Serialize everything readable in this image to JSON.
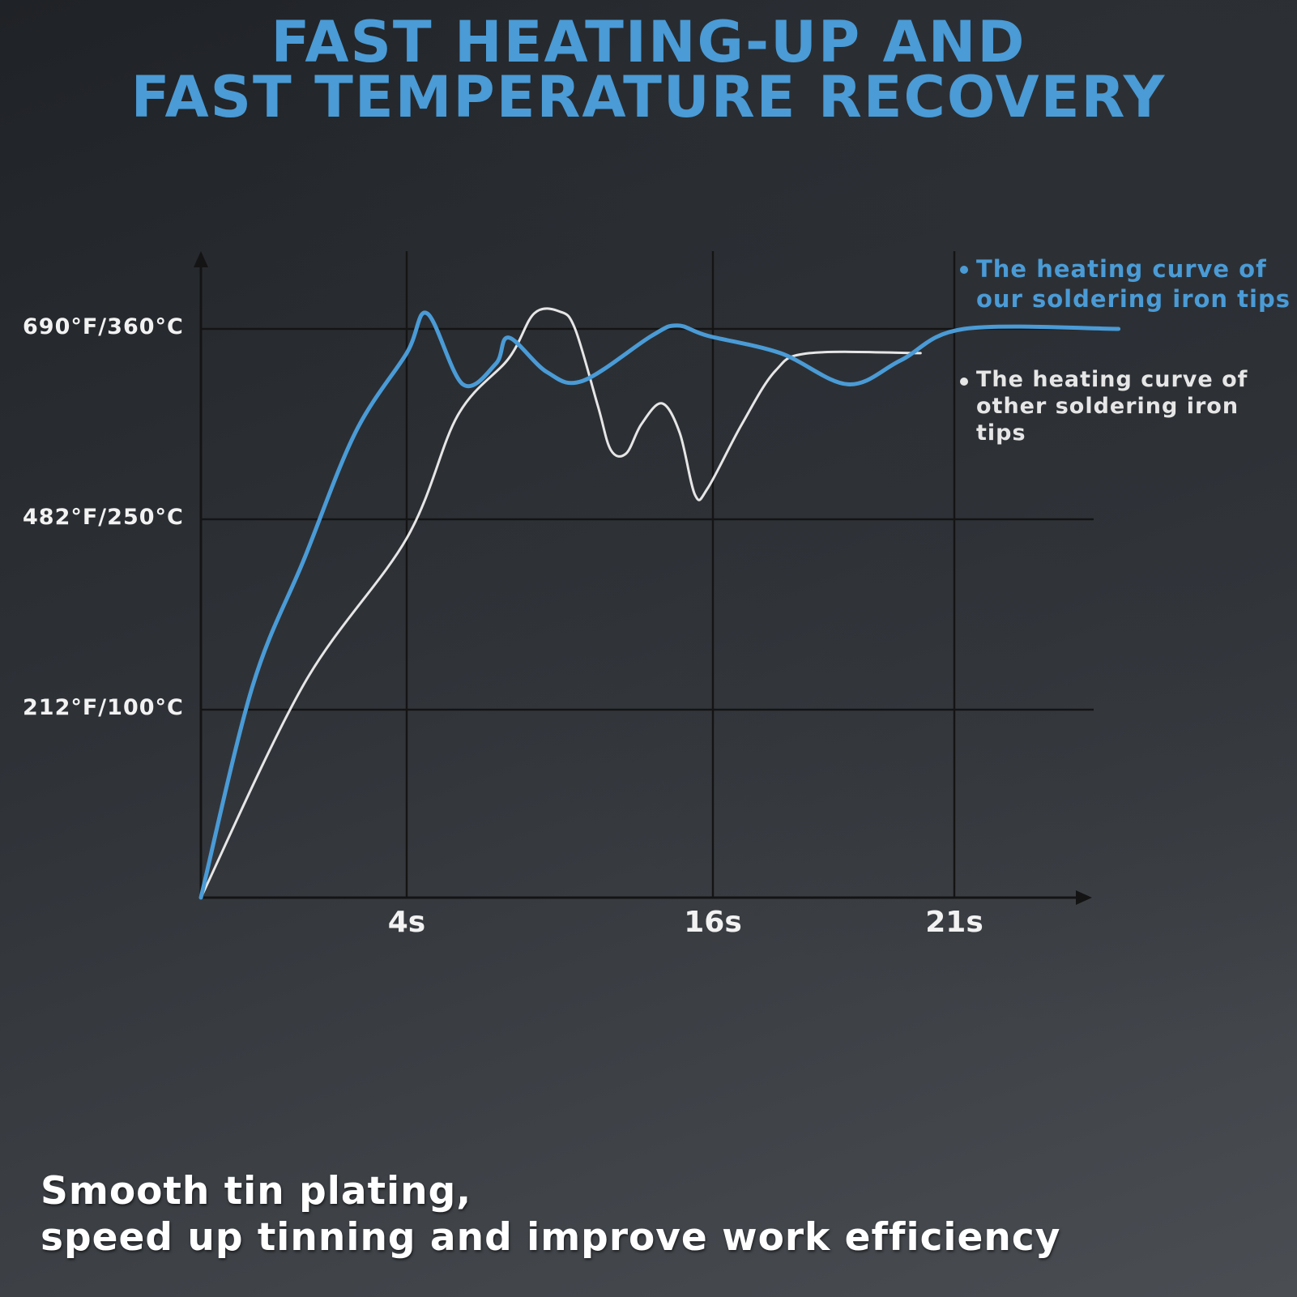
{
  "title_line1": "FAST HEATING-UP AND",
  "title_line2": "FAST TEMPERATURE RECOVERY",
  "footer_line1": "Smooth tin plating,",
  "footer_line2": "speed up tinning and improve work efficiency",
  "colors": {
    "ours": "#4a9bd6",
    "others": "#e6e6e6",
    "grid": "#141414",
    "title": "#4a9bd6"
  },
  "chart_data": {
    "type": "line",
    "grid": true,
    "y_ticks": [
      {
        "label": "212°F/100°C",
        "value": 100
      },
      {
        "label": "482°F/250°C",
        "value": 250
      },
      {
        "label": "690°F/360°C",
        "value": 360
      }
    ],
    "x_ticks": [
      {
        "label": "4s",
        "value": 4
      },
      {
        "label": "16s",
        "value": 16
      },
      {
        "label": "21s",
        "value": 21
      }
    ],
    "series": [
      {
        "name": "The heating curve of our soldering iron tips",
        "legend_line1": "The heating curve of",
        "legend_line2": "our soldering iron tips",
        "points": [
          [
            0,
            0
          ],
          [
            1,
            118
          ],
          [
            2,
            218
          ],
          [
            3,
            300
          ],
          [
            4,
            346
          ],
          [
            4.8,
            369
          ],
          [
            6.2,
            328
          ],
          [
            7.5,
            340
          ],
          [
            8,
            355
          ],
          [
            9.5,
            335
          ],
          [
            10.9,
            330
          ],
          [
            13.6,
            356
          ],
          [
            14.6,
            362
          ],
          [
            15.8,
            356
          ],
          [
            17.4,
            346
          ],
          [
            18.8,
            328
          ],
          [
            19.9,
            342
          ],
          [
            21.2,
            360
          ],
          [
            24.4,
            360
          ]
        ]
      },
      {
        "name": "The heating curve of other soldering iron tips",
        "legend_line1": "The heating curve of",
        "legend_line2": "other soldering iron tips",
        "points": [
          [
            0,
            0
          ],
          [
            2,
            120
          ],
          [
            4,
            235
          ],
          [
            6,
            310
          ],
          [
            8,
            343
          ],
          [
            9,
            369
          ],
          [
            10,
            370
          ],
          [
            10.6,
            360
          ],
          [
            11.5,
            315
          ],
          [
            12,
            290
          ],
          [
            12.6,
            288
          ],
          [
            13.2,
            305
          ],
          [
            14,
            317
          ],
          [
            14.7,
            300
          ],
          [
            15.3,
            264
          ],
          [
            15.8,
            268
          ],
          [
            16.6,
            305
          ],
          [
            17.3,
            336
          ],
          [
            18,
            346
          ],
          [
            20.3,
            346
          ]
        ]
      }
    ]
  }
}
